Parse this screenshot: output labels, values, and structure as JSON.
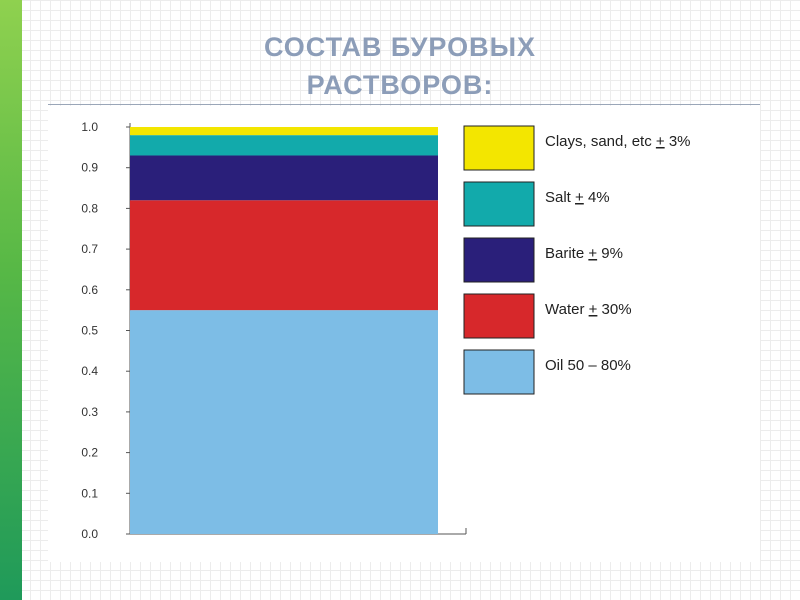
{
  "slide": {
    "title_line1": "СОСТАВ БУРОВЫХ",
    "title_line2": "РАСТВОРОВ",
    "title_colon": ":"
  },
  "colors": {
    "accent_bar": "#57b846",
    "title": "#8c9db8"
  },
  "chart_data": {
    "type": "bar",
    "stacked": true,
    "categories": [
      ""
    ],
    "ylim": [
      0,
      1.0
    ],
    "yticks": [
      "0.0",
      "0.1",
      "0.2",
      "0.3",
      "0.4",
      "0.5",
      "0.6",
      "0.7",
      "0.8",
      "0.9",
      "1.0"
    ],
    "title": "",
    "xlabel": "",
    "ylabel": "",
    "grid": false,
    "legend_position": "right",
    "series": [
      {
        "name": "Oil 50 – 80%",
        "values": [
          0.55
        ],
        "color": "#7dbde6"
      },
      {
        "name": "Water ± 30%",
        "values": [
          0.27
        ],
        "color": "#d7282b"
      },
      {
        "name": "Barite ± 9%",
        "values": [
          0.11
        ],
        "color": "#2a1f7a"
      },
      {
        "name": "Salt ± 4%",
        "values": [
          0.05
        ],
        "color": "#12aaab"
      },
      {
        "name": "Clays, sand, etc ± 3%",
        "values": [
          0.02
        ],
        "color": "#f3e600"
      }
    ],
    "legend_labels": {
      "clays": [
        "Clays, sand, etc ",
        "+",
        " 3%"
      ],
      "salt": [
        "Salt ",
        "+",
        " 4%"
      ],
      "barite": [
        "Barite ",
        "+",
        " 9%"
      ],
      "water": [
        "Water ",
        "+",
        " 30%"
      ],
      "oil": [
        "Oil 50 – 80%"
      ]
    }
  }
}
